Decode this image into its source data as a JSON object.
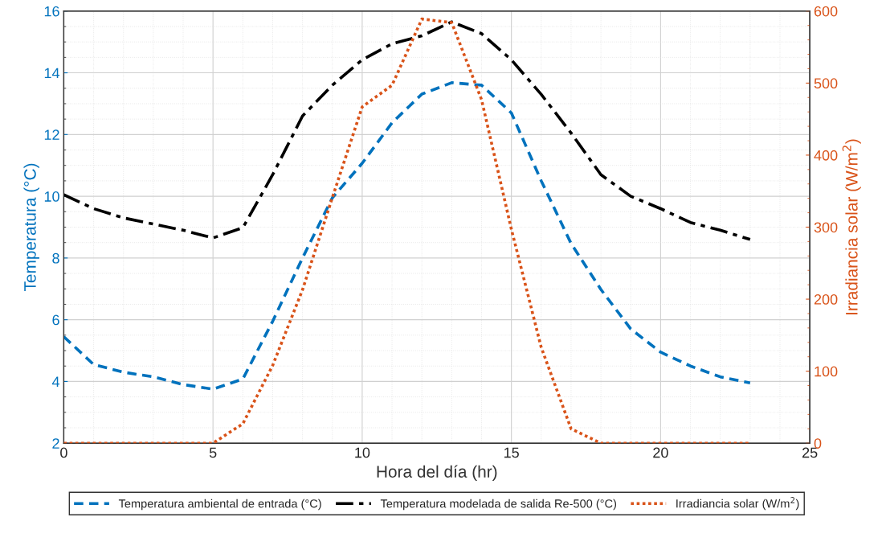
{
  "chart_data": {
    "type": "line",
    "xlabel": "Hora del día (hr)",
    "ylabel": "Temperatura (°C)",
    "y2label": "Irradiancia solar (W/m$^{2}$)",
    "x": [
      0,
      1,
      2,
      3,
      4,
      5,
      6,
      7,
      8,
      9,
      10,
      11,
      12,
      13,
      14,
      15,
      16,
      17,
      18,
      19,
      20,
      21,
      22,
      23
    ],
    "xlim": [
      0,
      25
    ],
    "xticks": [
      0,
      5,
      10,
      15,
      20,
      25
    ],
    "ylim": [
      2,
      16
    ],
    "yticks": [
      2,
      4,
      6,
      8,
      10,
      12,
      14,
      16
    ],
    "y2lim": [
      0,
      600
    ],
    "y2ticks": [
      0,
      100,
      200,
      300,
      400,
      500,
      600
    ],
    "grid": true,
    "legend": "bottom",
    "series": [
      {
        "name": "Temperatura ambiental de entrada (°C)",
        "color": "#0072bd",
        "line_style": "dashed",
        "values": [
          5.45,
          4.55,
          4.3,
          4.15,
          3.9,
          3.75,
          4.08,
          5.95,
          8.0,
          9.95,
          11.07,
          12.38,
          13.31,
          13.68,
          13.6,
          12.7,
          10.5,
          8.47,
          6.98,
          5.7,
          4.95,
          4.5,
          4.15,
          3.95
        ]
      },
      {
        "name": "Temperatura modelada de salida Re-500 (°C)",
        "color": "#000000",
        "line_style": "dashdot",
        "values": [
          10.05,
          9.6,
          9.3,
          9.1,
          8.9,
          8.65,
          8.98,
          10.7,
          12.6,
          13.6,
          14.42,
          14.94,
          15.2,
          15.65,
          15.27,
          14.42,
          13.3,
          12.05,
          10.7,
          10.0,
          9.6,
          9.15,
          8.9,
          8.6
        ]
      },
      {
        "name": "Irradiancia solar (W/m$^{2}$)",
        "color": "#d95319",
        "line_style": "dotted",
        "axis": "y2",
        "values": [
          0,
          0,
          0,
          0,
          0,
          0,
          27,
          108,
          213,
          341,
          467,
          497,
          589,
          584,
          477,
          297,
          133,
          20,
          0,
          0,
          0,
          0,
          0,
          0
        ]
      }
    ]
  }
}
